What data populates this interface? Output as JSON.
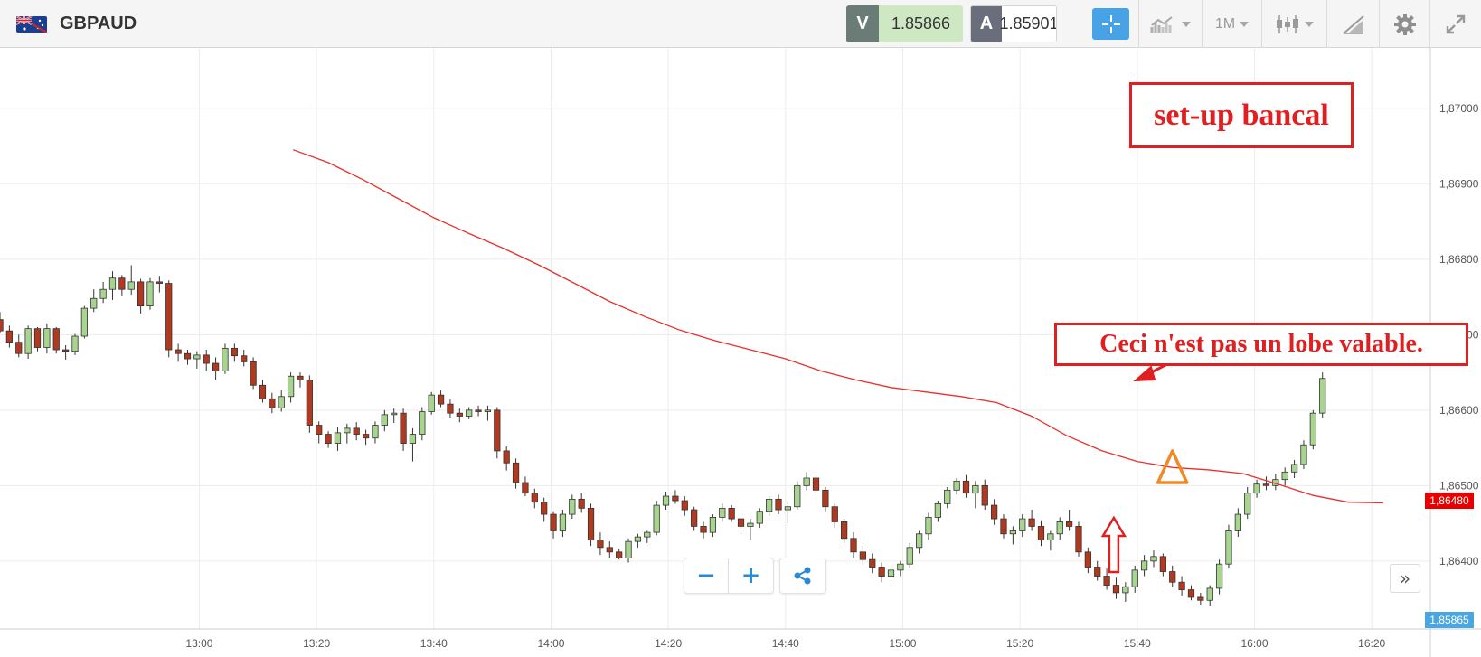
{
  "header": {
    "symbol": "GBPAUD",
    "sell_tag": "V",
    "sell_price": "1.85866",
    "buy_tag": "A",
    "buy_price": "1.85901",
    "timeframe": "1M"
  },
  "icons": {
    "flag": "gb-au-flag-icon",
    "crosshair": "crosshair-icon",
    "indicators": "indicators-icon",
    "chart_type": "candlestick-icon",
    "drawing": "drawing-tools-icon",
    "settings": "gear-icon",
    "fullscreen": "expand-icon",
    "zoom_out": "minus-icon",
    "zoom_in": "plus-icon",
    "share": "share-icon",
    "scroll": "double-chevron-right-icon"
  },
  "colors": {
    "bull": "#a7d48e",
    "bear": "#b03a1f",
    "ma": "#e8302a",
    "annotation": "#e02020",
    "triangle": "#f08a24",
    "accent": "#47a3e6"
  },
  "controls": {
    "zoom_out": "−",
    "zoom_in": "+",
    "scroll_right": "»"
  },
  "annotations": {
    "title": "set-up bancal",
    "note": "Ceci n'est pas un lobe valable."
  },
  "price_tags": {
    "moving_average": "1,86480",
    "current": "1,85865"
  },
  "chart_data": {
    "type": "candlestick",
    "x_ticks": [
      "13:00",
      "13:20",
      "13:40",
      "14:00",
      "14:20",
      "14:40",
      "15:00",
      "15:20",
      "15:40",
      "16:00",
      "16:20"
    ],
    "y_ticks": [
      "1,87000",
      "1,86900",
      "1,86800",
      "1,86700",
      "1,86600",
      "1,86500",
      "1,86400"
    ],
    "y_tick_values": [
      1.87,
      1.869,
      1.868,
      1.867,
      1.866,
      1.865,
      1.864
    ],
    "ylim": [
      1.8631,
      1.8708
    ],
    "xlim_minutes": [
      746,
      990
    ],
    "grid": true,
    "moving_average": [
      [
        1.86945,
        1.86928,
        1.86905,
        1.8688,
        1.86855,
        1.86834,
        1.86814,
        1.86792,
        1.86768,
        1.86744,
        1.86724,
        1.86706,
        1.86692,
        1.8668,
        1.86668,
        1.86652,
        1.8664,
        1.8663,
        1.86624,
        1.86618,
        1.8661,
        1.86592,
        1.86566,
        1.86546,
        1.86532,
        1.86524,
        1.86521,
        1.86516,
        1.86502,
        1.86487,
        1.86478,
        1.86477
      ]
    ],
    "ma_start_minute": 796,
    "ma_step_minutes": 6,
    "candles": [
      [
        1.8672,
        1.8673,
        1.86702,
        1.86705
      ],
      [
        1.86705,
        1.86712,
        1.86683,
        1.8669
      ],
      [
        1.8669,
        1.867,
        1.8667,
        1.86675
      ],
      [
        1.86675,
        1.86712,
        1.86668,
        1.86708
      ],
      [
        1.86708,
        1.8671,
        1.86678,
        1.86683
      ],
      [
        1.86683,
        1.86715,
        1.86675,
        1.86708
      ],
      [
        1.86708,
        1.8671,
        1.86675,
        1.8668
      ],
      [
        1.8668,
        1.86686,
        1.86667,
        1.86678
      ],
      [
        1.86678,
        1.86701,
        1.86673,
        1.86698
      ],
      [
        1.86698,
        1.86738,
        1.86695,
        1.86735
      ],
      [
        1.86735,
        1.8676,
        1.8673,
        1.86748
      ],
      [
        1.86748,
        1.8677,
        1.86742,
        1.8676
      ],
      [
        1.8676,
        1.86784,
        1.86746,
        1.86775
      ],
      [
        1.86775,
        1.86779,
        1.86752,
        1.8676
      ],
      [
        1.8676,
        1.86792,
        1.86753,
        1.8677
      ],
      [
        1.8677,
        1.86774,
        1.86728,
        1.86738
      ],
      [
        1.86738,
        1.86775,
        1.86733,
        1.8677
      ],
      [
        1.8677,
        1.86778,
        1.86756,
        1.86768
      ],
      [
        1.86768,
        1.86772,
        1.8667,
        1.8668
      ],
      [
        1.8668,
        1.86688,
        1.86664,
        1.86675
      ],
      [
        1.86675,
        1.8668,
        1.8666,
        1.86668
      ],
      [
        1.86668,
        1.86678,
        1.86655,
        1.86673
      ],
      [
        1.86673,
        1.8668,
        1.86652,
        1.86662
      ],
      [
        1.86662,
        1.8667,
        1.8664,
        1.86652
      ],
      [
        1.86652,
        1.86688,
        1.86648,
        1.86682
      ],
      [
        1.86682,
        1.86688,
        1.86664,
        1.86672
      ],
      [
        1.86672,
        1.8668,
        1.86658,
        1.86664
      ],
      [
        1.86664,
        1.8667,
        1.86628,
        1.86633
      ],
      [
        1.86633,
        1.8664,
        1.8661,
        1.86615
      ],
      [
        1.86615,
        1.86623,
        1.86596,
        1.86603
      ],
      [
        1.86603,
        1.86626,
        1.86598,
        1.86618
      ],
      [
        1.86618,
        1.8665,
        1.8661,
        1.86645
      ],
      [
        1.86645,
        1.8665,
        1.8663,
        1.8664
      ],
      [
        1.8664,
        1.86646,
        1.8657,
        1.8658
      ],
      [
        1.8658,
        1.86585,
        1.86556,
        1.86568
      ],
      [
        1.86568,
        1.86572,
        1.8655,
        1.86556
      ],
      [
        1.86556,
        1.86578,
        1.86546,
        1.8657
      ],
      [
        1.8657,
        1.86582,
        1.86556,
        1.86576
      ],
      [
        1.86576,
        1.86584,
        1.8656,
        1.86568
      ],
      [
        1.86568,
        1.86574,
        1.86554,
        1.86563
      ],
      [
        1.86563,
        1.86585,
        1.86556,
        1.8658
      ],
      [
        1.8658,
        1.866,
        1.86572,
        1.86594
      ],
      [
        1.86594,
        1.86602,
        1.86583,
        1.86596
      ],
      [
        1.86596,
        1.86602,
        1.86546,
        1.86556
      ],
      [
        1.86556,
        1.86576,
        1.86532,
        1.86568
      ],
      [
        1.86568,
        1.86604,
        1.8656,
        1.86598
      ],
      [
        1.86598,
        1.86624,
        1.86594,
        1.8662
      ],
      [
        1.8662,
        1.86626,
        1.86604,
        1.86608
      ],
      [
        1.86608,
        1.86614,
        1.8659,
        1.86596
      ],
      [
        1.86596,
        1.86602,
        1.86584,
        1.86592
      ],
      [
        1.86592,
        1.86604,
        1.86588,
        1.866
      ],
      [
        1.866,
        1.86606,
        1.86592,
        1.86598
      ],
      [
        1.86598,
        1.86606,
        1.86586,
        1.866
      ],
      [
        1.866,
        1.86604,
        1.86536,
        1.86546
      ],
      [
        1.86546,
        1.86552,
        1.8652,
        1.8653
      ],
      [
        1.8653,
        1.86536,
        1.86496,
        1.86504
      ],
      [
        1.86504,
        1.86512,
        1.86486,
        1.8649
      ],
      [
        1.8649,
        1.86496,
        1.8647,
        1.86478
      ],
      [
        1.86478,
        1.86484,
        1.86452,
        1.86462
      ],
      [
        1.86462,
        1.86466,
        1.8643,
        1.8644
      ],
      [
        1.8644,
        1.86468,
        1.86432,
        1.86462
      ],
      [
        1.86462,
        1.86488,
        1.86456,
        1.86482
      ],
      [
        1.86482,
        1.8649,
        1.86464,
        1.8647
      ],
      [
        1.8647,
        1.86476,
        1.8642,
        1.86428
      ],
      [
        1.86428,
        1.86438,
        1.86408,
        1.86418
      ],
      [
        1.86418,
        1.86426,
        1.86404,
        1.86412
      ],
      [
        1.86412,
        1.86416,
        1.86402,
        1.86404
      ],
      [
        1.86404,
        1.8643,
        1.86398,
        1.86426
      ],
      [
        1.86426,
        1.86436,
        1.86418,
        1.86432
      ],
      [
        1.86432,
        1.8644,
        1.86424,
        1.86438
      ],
      [
        1.86438,
        1.8648,
        1.86434,
        1.86474
      ],
      [
        1.86474,
        1.86492,
        1.86468,
        1.86486
      ],
      [
        1.86486,
        1.86494,
        1.86476,
        1.8648
      ],
      [
        1.8648,
        1.86486,
        1.8646,
        1.86468
      ],
      [
        1.86468,
        1.86472,
        1.8644,
        1.86446
      ],
      [
        1.86446,
        1.86452,
        1.8643,
        1.86438
      ],
      [
        1.86438,
        1.86462,
        1.86432,
        1.86458
      ],
      [
        1.86458,
        1.86476,
        1.86452,
        1.8647
      ],
      [
        1.8647,
        1.86474,
        1.86452,
        1.86456
      ],
      [
        1.86456,
        1.86462,
        1.86436,
        1.86446
      ],
      [
        1.86446,
        1.86456,
        1.86428,
        1.8645
      ],
      [
        1.8645,
        1.8647,
        1.86444,
        1.86466
      ],
      [
        1.86466,
        1.86486,
        1.8646,
        1.86482
      ],
      [
        1.86482,
        1.86488,
        1.86462,
        1.86468
      ],
      [
        1.86468,
        1.86478,
        1.8645,
        1.86472
      ],
      [
        1.86472,
        1.86506,
        1.86468,
        1.865
      ],
      [
        1.865,
        1.86518,
        1.86494,
        1.8651
      ],
      [
        1.8651,
        1.86516,
        1.8649,
        1.86494
      ],
      [
        1.86494,
        1.86498,
        1.86466,
        1.86472
      ],
      [
        1.86472,
        1.86476,
        1.86444,
        1.86452
      ],
      [
        1.86452,
        1.86456,
        1.86424,
        1.8643
      ],
      [
        1.8643,
        1.86438,
        1.86404,
        1.86412
      ],
      [
        1.86412,
        1.8642,
        1.86396,
        1.86402
      ],
      [
        1.86402,
        1.8641,
        1.86384,
        1.86392
      ],
      [
        1.86392,
        1.86398,
        1.86372,
        1.8638
      ],
      [
        1.8638,
        1.86394,
        1.8637,
        1.86388
      ],
      [
        1.86388,
        1.864,
        1.8638,
        1.86396
      ],
      [
        1.86396,
        1.86424,
        1.8639,
        1.86418
      ],
      [
        1.86418,
        1.8644,
        1.8641,
        1.86436
      ],
      [
        1.86436,
        1.86464,
        1.86428,
        1.86458
      ],
      [
        1.86458,
        1.8648,
        1.86452,
        1.86476
      ],
      [
        1.86476,
        1.86498,
        1.8647,
        1.86494
      ],
      [
        1.86494,
        1.8651,
        1.86488,
        1.86506
      ],
      [
        1.86506,
        1.86514,
        1.86484,
        1.8649
      ],
      [
        1.8649,
        1.86506,
        1.8647,
        1.865
      ],
      [
        1.865,
        1.86508,
        1.86468,
        1.86474
      ],
      [
        1.86474,
        1.86482,
        1.86448,
        1.86456
      ],
      [
        1.86456,
        1.86462,
        1.8643,
        1.86436
      ],
      [
        1.86436,
        1.86446,
        1.86422,
        1.8644
      ],
      [
        1.8644,
        1.86462,
        1.86432,
        1.86456
      ],
      [
        1.86456,
        1.86468,
        1.8644,
        1.86446
      ],
      [
        1.86446,
        1.86454,
        1.8642,
        1.86428
      ],
      [
        1.86428,
        1.8644,
        1.86414,
        1.86436
      ],
      [
        1.86436,
        1.86458,
        1.86428,
        1.86452
      ],
      [
        1.86452,
        1.86468,
        1.8644,
        1.86446
      ],
      [
        1.86446,
        1.86452,
        1.86406,
        1.86412
      ],
      [
        1.86412,
        1.86418,
        1.86384,
        1.86392
      ],
      [
        1.86392,
        1.864,
        1.86374,
        1.8638
      ],
      [
        1.8638,
        1.8639,
        1.86362,
        1.86368
      ],
      [
        1.86368,
        1.86378,
        1.8635,
        1.86358
      ],
      [
        1.86358,
        1.86372,
        1.86346,
        1.86366
      ],
      [
        1.86366,
        1.86394,
        1.86358,
        1.86388
      ],
      [
        1.86388,
        1.86408,
        1.8638,
        1.864
      ],
      [
        1.864,
        1.86414,
        1.86392,
        1.86406
      ],
      [
        1.86406,
        1.8641,
        1.8638,
        1.86386
      ],
      [
        1.86386,
        1.86394,
        1.86366,
        1.86372
      ],
      [
        1.86372,
        1.8638,
        1.86354,
        1.86362
      ],
      [
        1.86362,
        1.86368,
        1.86348,
        1.86352
      ],
      [
        1.86352,
        1.86358,
        1.86342,
        1.86348
      ],
      [
        1.86348,
        1.86368,
        1.8634,
        1.86364
      ],
      [
        1.86364,
        1.86402,
        1.86356,
        1.86396
      ],
      [
        1.86396,
        1.86448,
        1.8639,
        1.8644
      ],
      [
        1.8644,
        1.8647,
        1.86432,
        1.86462
      ],
      [
        1.86462,
        1.86498,
        1.86456,
        1.8649
      ],
      [
        1.8649,
        1.86508,
        1.86484,
        1.86502
      ],
      [
        1.86502,
        1.86512,
        1.86494,
        1.865
      ],
      [
        1.865,
        1.86516,
        1.86494,
        1.86508
      ],
      [
        1.86508,
        1.86524,
        1.865,
        1.86518
      ],
      [
        1.86518,
        1.86534,
        1.8651,
        1.86528
      ],
      [
        1.86528,
        1.8656,
        1.86522,
        1.86554
      ],
      [
        1.86554,
        1.866,
        1.86548,
        1.86596
      ],
      [
        1.86596,
        1.8665,
        1.8659,
        1.86642
      ]
    ],
    "candle_start_minute": 746,
    "candle_step_minutes": 1.6,
    "markers": {
      "up_arrow_minute": 936,
      "triangle_minute": 946
    }
  }
}
